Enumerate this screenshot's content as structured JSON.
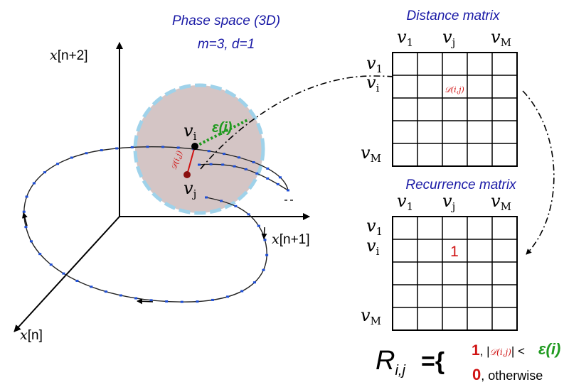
{
  "phase_space": {
    "title": "Phase space (3D)",
    "params": "m=3, d=1",
    "axis_x": "x",
    "axis_x_idx": "[n]",
    "axis_y": "x",
    "axis_y_idx": "[n+1]",
    "axis_z": "x",
    "axis_z_idx": "[n+2]",
    "point_i": "v",
    "point_i_sub": "i",
    "point_j": "v",
    "point_j_sub": "j",
    "radius_label": "ε(i)",
    "dist_label": "𝒟(i,j)"
  },
  "distance_matrix": {
    "title": "Distance matrix",
    "col_labels": [
      {
        "base": "v",
        "sub": "1"
      },
      {
        "base": "v",
        "sub": "j"
      },
      {
        "base": "v",
        "sub": "M"
      }
    ],
    "row_labels": [
      {
        "base": "v",
        "sub": "1"
      },
      {
        "base": "v",
        "sub": "i"
      },
      {
        "base": "v",
        "sub": "M"
      }
    ],
    "cell_label": "𝒟(i,j)"
  },
  "recurrence_matrix": {
    "title": "Recurrence matrix",
    "col_labels": [
      {
        "base": "v",
        "sub": "1"
      },
      {
        "base": "v",
        "sub": "j"
      },
      {
        "base": "v",
        "sub": "M"
      }
    ],
    "row_labels": [
      {
        "base": "v",
        "sub": "1"
      },
      {
        "base": "v",
        "sub": "i"
      },
      {
        "base": "v",
        "sub": "M"
      }
    ],
    "cell_value": "1"
  },
  "formula": {
    "lhs": "R",
    "lhs_sub": "i,j",
    "eq": "={",
    "case1_val": "1",
    "case1_cond_pre": ", |",
    "case1_cond_d": "𝒟(i,j)",
    "case1_cond_post": "| <",
    "case1_eps": "ε(i)",
    "case2_val": "0",
    "case2_cond": ", otherwise"
  },
  "colors": {
    "title_blue": "#1a1aa6",
    "sphere_fill": "#c9b7b7",
    "sphere_edge": "#9fd2ea",
    "dot_blue": "#1f4fd6",
    "red": "#d01414",
    "green": "#1f9a1f"
  }
}
